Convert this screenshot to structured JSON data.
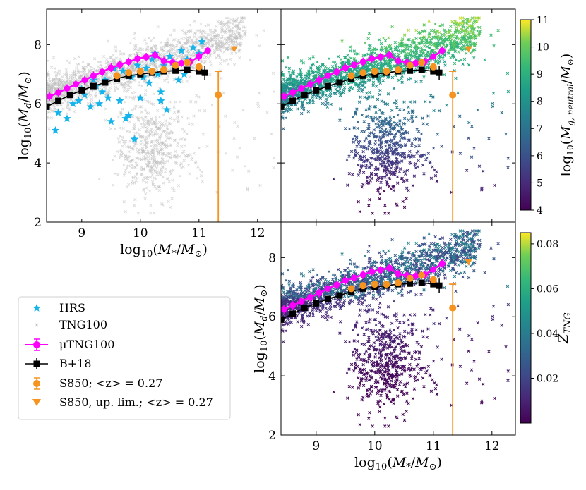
{
  "chart_data": [
    {
      "type": "scatter",
      "panel": "top-left",
      "xlabel": "log10(M*/M⊙)",
      "ylabel": "log10(Md/M⊙)",
      "xlim": [
        8.4,
        12.4
      ],
      "ylim": [
        2,
        9.2
      ],
      "xticks": [
        "9",
        "10",
        "11",
        "12"
      ],
      "yticks": [
        "2",
        "4",
        "6",
        "8"
      ],
      "series": [
        {
          "name": "TNG100",
          "color": "#bdbdbd",
          "marker": "x",
          "description": "grey cloud of galaxies"
        },
        {
          "name": "HRS",
          "color": "#15b4ea",
          "marker": "star",
          "x": [
            8.55,
            8.6,
            8.75,
            8.85,
            8.95,
            9.05,
            9.15,
            9.25,
            9.3,
            9.4,
            9.45,
            9.5,
            9.6,
            9.65,
            9.7,
            9.8,
            9.85,
            9.95,
            10.0,
            10.05,
            10.1,
            10.15,
            10.2,
            10.3,
            10.35,
            10.4,
            10.45,
            10.5,
            10.6,
            10.65,
            10.7,
            10.8,
            10.9,
            11.0,
            11.05,
            9.0,
            9.2,
            9.55,
            9.75,
            10.25,
            10.55,
            9.9,
            10.35,
            9.35,
            10.75
          ],
          "y": [
            5.1,
            5.7,
            5.5,
            6.0,
            6.1,
            6.3,
            5.9,
            6.6,
            6.0,
            6.8,
            6.2,
            5.4,
            6.9,
            6.1,
            7.1,
            5.6,
            6.9,
            7.3,
            6.2,
            6.9,
            7.2,
            6.7,
            7.5,
            7.0,
            6.4,
            7.3,
            5.8,
            7.6,
            7.2,
            6.8,
            7.8,
            7.5,
            7.9,
            7.7,
            8.1,
            6.5,
            6.8,
            7.2,
            5.5,
            7.7,
            7.4,
            4.8,
            6.1,
            6.4,
            7.0
          ]
        },
        {
          "name": "μTNG100",
          "color": "#ff00ff",
          "marker": "circle-line",
          "x": [
            8.45,
            8.6,
            8.75,
            8.9,
            9.05,
            9.2,
            9.35,
            9.5,
            9.65,
            9.8,
            9.95,
            10.1,
            10.25,
            10.4,
            10.55,
            10.7,
            10.85,
            11.0,
            11.15
          ],
          "y": [
            6.25,
            6.38,
            6.52,
            6.66,
            6.8,
            6.95,
            7.08,
            7.22,
            7.32,
            7.42,
            7.52,
            7.58,
            7.65,
            7.45,
            7.4,
            7.38,
            7.42,
            7.6,
            7.8
          ]
        },
        {
          "name": "B+18",
          "color": "#000000",
          "marker": "square-line",
          "x": [
            8.4,
            8.6,
            8.8,
            9.0,
            9.2,
            9.4,
            9.6,
            9.8,
            10.0,
            10.2,
            10.4,
            10.6,
            10.8,
            11.0,
            11.1
          ],
          "y": [
            5.9,
            6.1,
            6.3,
            6.45,
            6.6,
            6.72,
            6.85,
            6.95,
            7.0,
            7.05,
            7.1,
            7.12,
            7.15,
            7.1,
            7.05
          ]
        },
        {
          "name": "S850; <z> = 0.27",
          "color": "#f59421",
          "marker": "circle",
          "x": [
            9.6,
            9.8,
            10.0,
            10.2,
            10.4,
            10.6,
            10.8,
            11.0,
            11.33
          ],
          "y": [
            6.95,
            7.05,
            7.1,
            7.1,
            7.15,
            7.3,
            7.4,
            7.25,
            6.3
          ],
          "yerr_last": [
            4.3,
            0.8
          ]
        },
        {
          "name": "S850, up. lim.; <z> = 0.27",
          "color": "#f59421",
          "marker": "triangle-down",
          "x": [
            11.6
          ],
          "y": [
            7.85
          ]
        }
      ]
    },
    {
      "type": "scatter",
      "panel": "top-right",
      "color_by": "log10(Mg,neutral/M⊙)",
      "xlim": [
        8.4,
        12.4
      ],
      "ylim": [
        2,
        9.2
      ],
      "colorbar": {
        "label": "log10(Mg,neutral/M⊙)",
        "range": [
          4,
          11
        ],
        "ticks": [
          "4",
          "5",
          "6",
          "7",
          "8",
          "9",
          "10",
          "11"
        ],
        "colormap": "viridis"
      }
    },
    {
      "type": "scatter",
      "panel": "bottom-right",
      "color_by": "ZTNG",
      "xlabel": "log10(M*/M⊙)",
      "ylabel": "log10(Md/M⊙)",
      "xlim": [
        8.4,
        12.4
      ],
      "ylim": [
        2,
        9.2
      ],
      "xticks": [
        "9",
        "10",
        "11",
        "12"
      ],
      "yticks": [
        "2",
        "4",
        "6",
        "8"
      ],
      "colorbar": {
        "label": "ZTNG",
        "range": [
          0.0,
          0.085
        ],
        "ticks": [
          "0.02",
          "0.04",
          "0.06",
          "0.08"
        ],
        "colormap": "viridis"
      }
    }
  ],
  "legend": {
    "placement": "bottom-left",
    "items": [
      {
        "label": "HRS",
        "icon": "star-icon",
        "color": "#15b4ea"
      },
      {
        "label": "TNG100",
        "icon": "x-marker-icon",
        "color": "#bdbdbd"
      },
      {
        "label": "μTNG100",
        "icon": "circle-errorbar-icon",
        "color": "#ff00ff"
      },
      {
        "label": "B+18",
        "icon": "square-errorbar-icon",
        "color": "#000000"
      },
      {
        "label": "S850; <z> = 0.27",
        "icon": "circle-errorbar-icon",
        "color": "#f59421"
      },
      {
        "label": "S850, up. lim.; <z> = 0.27",
        "icon": "triangle-down-icon",
        "color": "#f59421"
      }
    ]
  },
  "colors": {
    "hrs": "#15b4ea",
    "tng": "#bdbdbd",
    "mu": "#ff00ff",
    "b18": "#000000",
    "s850": "#f59421"
  }
}
